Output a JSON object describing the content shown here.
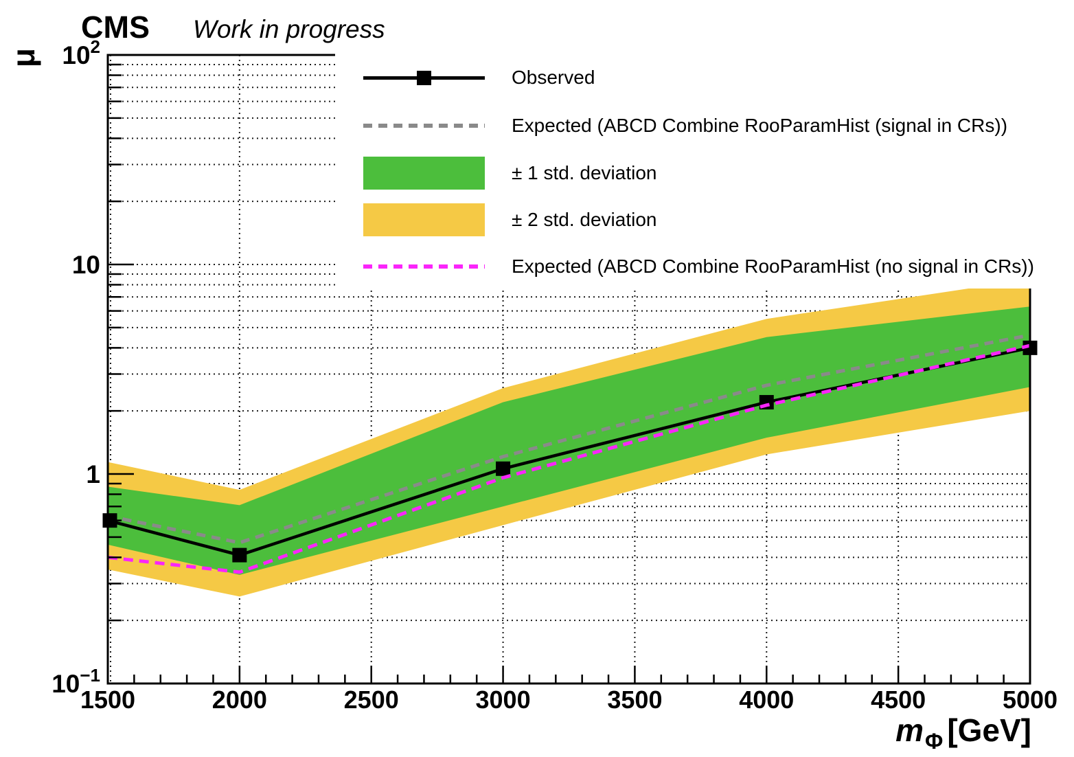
{
  "header": {
    "experiment": "CMS",
    "status": "Work in progress"
  },
  "chart_data": {
    "type": "line",
    "title": "CMS Work in progress",
    "xlabel": {
      "main": "m",
      "sub": "Φ",
      "unit": "[GeV]"
    },
    "ylabel": "μ",
    "xlim": [
      1500,
      5000
    ],
    "ylim": [
      0.1,
      100
    ],
    "yscale": "log",
    "grid": true,
    "x": [
      1500,
      2000,
      3000,
      4000,
      5000
    ],
    "xticks_major": [
      1500,
      2000,
      2500,
      3000,
      3500,
      4000,
      4500,
      5000
    ],
    "xtick_labels": [
      "1500",
      "2000",
      "2500",
      "3000",
      "3500",
      "4000",
      "4500",
      "5000"
    ],
    "xticks_minor_step": 100,
    "ytick_labels": [
      {
        "v": 100,
        "base": "10",
        "sup": "2"
      },
      {
        "v": 10,
        "base": "10",
        "sup": ""
      },
      {
        "v": 1,
        "base": "1",
        "sup": ""
      },
      {
        "v": 0.1,
        "base": "10",
        "sup": "−1"
      }
    ],
    "series": [
      {
        "name": "Observed",
        "style": "solid",
        "marker": "square",
        "color": "#000000",
        "values": [
          0.6,
          0.41,
          1.06,
          2.2,
          4.0
        ]
      },
      {
        "name": "Expected (ABCD Combine RooParamHist (signal in CRs))",
        "style": "dashed",
        "marker": "none",
        "color": "#8a8a8a",
        "values": [
          0.63,
          0.47,
          1.21,
          2.65,
          4.6
        ]
      },
      {
        "name": "Expected (ABCD Combine RooParamHist (no signal in CRs))",
        "style": "dashed",
        "marker": "none",
        "color": "#fa25fa",
        "values": [
          0.4,
          0.34,
          0.96,
          2.13,
          4.1
        ]
      }
    ],
    "bands": [
      {
        "name": "± 2 std. deviation",
        "color": "#f5c945",
        "upper": [
          1.14,
          0.84,
          2.57,
          5.5,
          8.5
        ],
        "lower": [
          0.35,
          0.26,
          0.57,
          1.24,
          2.0
        ]
      },
      {
        "name": "± 1 std. deviation",
        "color": "#4cbe3c",
        "upper": [
          0.87,
          0.71,
          2.2,
          4.5,
          6.3
        ],
        "lower": [
          0.46,
          0.33,
          0.7,
          1.49,
          2.6
        ]
      }
    ],
    "legend": {
      "position": "top-right",
      "items": [
        {
          "label": "Observed",
          "swatch": "line-marker",
          "color": "#000000"
        },
        {
          "label": "Expected (ABCD Combine RooParamHist (signal in CRs))",
          "swatch": "dash",
          "color": "#8a8a8a"
        },
        {
          "label": "± 1 std. deviation",
          "swatch": "box",
          "color": "#4cbe3c"
        },
        {
          "label": "± 2 std. deviation",
          "swatch": "box",
          "color": "#f5c945"
        },
        {
          "label": "Expected (ABCD Combine RooParamHist (no signal in CRs))",
          "swatch": "dash",
          "color": "#fa25fa"
        }
      ]
    },
    "colors": {
      "grid": "#000000",
      "frame": "#000000",
      "band_1sigma": "#4cbe3c",
      "band_2sigma": "#f5c945",
      "observed": "#000000",
      "expected_signal_in_CRs": "#8a8a8a",
      "expected_no_signal_in_CRs": "#fa25fa"
    }
  }
}
